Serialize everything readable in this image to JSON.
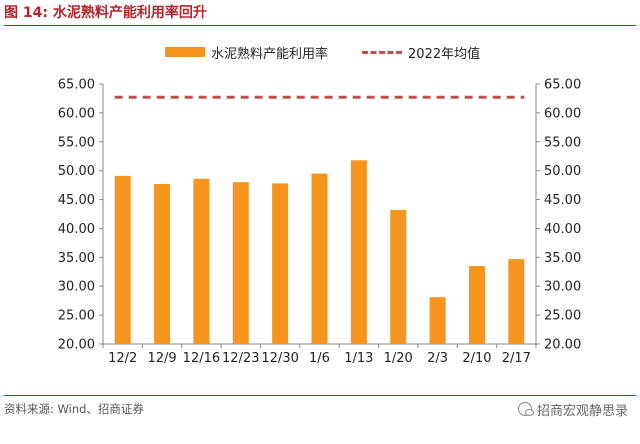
{
  "figure": {
    "title": "图 14: 水泥熟料产能利用率回升",
    "source": "资料来源: Wind、招商证券",
    "watermark": "招商宏观静思录"
  },
  "colors": {
    "bar": "#f7941d",
    "avg_line": "#c0504d",
    "title": "#b3262d",
    "axis": "#888888"
  },
  "chart_data": {
    "type": "bar",
    "title": "",
    "xlabel": "",
    "ylabel": "",
    "categories": [
      "12/2",
      "12/9",
      "12/16",
      "12/23",
      "12/30",
      "1/6",
      "1/13",
      "1/20",
      "2/3",
      "2/10",
      "2/17"
    ],
    "series": [
      {
        "name": "水泥熟料产能利用率",
        "type": "bar",
        "values": [
          49.1,
          47.7,
          48.6,
          48.0,
          47.8,
          49.5,
          51.8,
          43.2,
          28.1,
          33.5,
          34.7
        ]
      },
      {
        "name": "2022年均值",
        "type": "line",
        "style": "dashed",
        "value": 62.7
      }
    ],
    "ylim": [
      20,
      65
    ],
    "yticks": [
      "20.00",
      "25.00",
      "30.00",
      "35.00",
      "40.00",
      "45.00",
      "50.00",
      "55.00",
      "60.00",
      "65.00"
    ],
    "secondary_axis": true,
    "grid": false,
    "legend_position": "top"
  }
}
